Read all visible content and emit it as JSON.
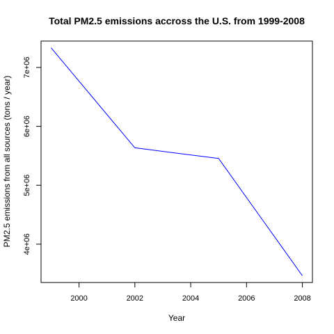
{
  "chart_data": {
    "type": "line",
    "title": "Total PM2.5 emissions accross the U.S. from 1999-2008",
    "xlabel": "Year",
    "ylabel": "PM2.5 emissions from all sources (tons / year)",
    "x": [
      1999,
      2002,
      2005,
      2008
    ],
    "series": [
      {
        "values": [
          7332967,
          5635780,
          5454703,
          3464206
        ]
      }
    ],
    "xlim": [
      1998.64,
      2008.36
    ],
    "ylim": [
      3349336,
      7447837
    ],
    "x_ticks": [
      2000,
      2002,
      2004,
      2006,
      2008
    ],
    "x_tick_labels": [
      "2000",
      "2002",
      "2004",
      "2006",
      "2008"
    ],
    "y_ticks": [
      4000000,
      5000000,
      6000000,
      7000000
    ],
    "y_tick_labels": [
      "4e+06",
      "5e+06",
      "6e+06",
      "7e+06"
    ],
    "line_color": "#0000FF",
    "grid": false,
    "legend": "none"
  }
}
